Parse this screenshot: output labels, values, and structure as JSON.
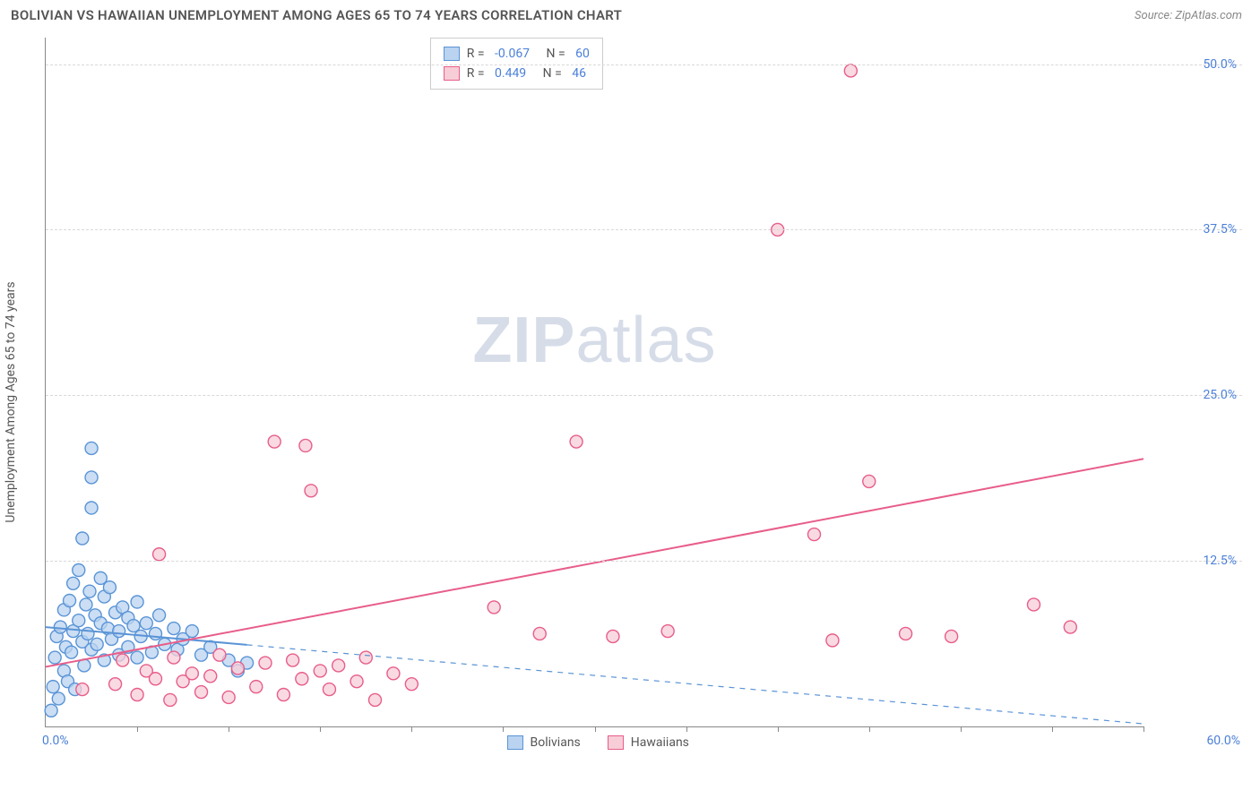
{
  "header": {
    "title": "BOLIVIAN VS HAWAIIAN UNEMPLOYMENT AMONG AGES 65 TO 74 YEARS CORRELATION CHART",
    "source_label": "Source: ZipAtlas.com"
  },
  "watermark": {
    "part1": "ZIP",
    "part2": "atlas"
  },
  "chart": {
    "type": "scatter",
    "y_axis_label": "Unemployment Among Ages 65 to 74 years",
    "xlim": [
      0,
      60
    ],
    "ylim": [
      0,
      52
    ],
    "x_ticks_minor": [
      5,
      10,
      15,
      20,
      25,
      30,
      35,
      40,
      45,
      50,
      55,
      60
    ],
    "x_origin_label": "0.0%",
    "x_max_label": "60.0%",
    "y_ticks": [
      {
        "v": 12.5,
        "label": "12.5%"
      },
      {
        "v": 25.0,
        "label": "25.0%"
      },
      {
        "v": 37.5,
        "label": "37.5%"
      },
      {
        "v": 50.0,
        "label": "50.0%"
      }
    ],
    "background_color": "#ffffff",
    "grid_color": "#d8d8d8",
    "axis_color": "#888888",
    "marker_radius": 7,
    "marker_stroke_width": 1.4,
    "line_width": 2,
    "series": [
      {
        "name": "Bolivians",
        "fill": "#b9d3f0",
        "stroke": "#5a94d6",
        "r_value": "-0.067",
        "n_value": "60",
        "trend_start": {
          "x": 0,
          "y": 7.5
        },
        "trend_end": {
          "x": 60,
          "y": 0.2
        },
        "trend_solid_until_x": 11,
        "points": [
          {
            "x": 0.3,
            "y": 1.2
          },
          {
            "x": 0.4,
            "y": 3.0
          },
          {
            "x": 0.5,
            "y": 5.2
          },
          {
            "x": 0.6,
            "y": 6.8
          },
          {
            "x": 0.7,
            "y": 2.1
          },
          {
            "x": 0.8,
            "y": 7.5
          },
          {
            "x": 1.0,
            "y": 4.2
          },
          {
            "x": 1.0,
            "y": 8.8
          },
          {
            "x": 1.1,
            "y": 6.0
          },
          {
            "x": 1.2,
            "y": 3.4
          },
          {
            "x": 1.3,
            "y": 9.5
          },
          {
            "x": 1.4,
            "y": 5.6
          },
          {
            "x": 1.5,
            "y": 7.2
          },
          {
            "x": 1.5,
            "y": 10.8
          },
          {
            "x": 1.6,
            "y": 2.8
          },
          {
            "x": 1.8,
            "y": 8.0
          },
          {
            "x": 1.8,
            "y": 11.8
          },
          {
            "x": 2.0,
            "y": 6.4
          },
          {
            "x": 2.0,
            "y": 14.2
          },
          {
            "x": 2.1,
            "y": 4.6
          },
          {
            "x": 2.2,
            "y": 9.2
          },
          {
            "x": 2.3,
            "y": 7.0
          },
          {
            "x": 2.4,
            "y": 10.2
          },
          {
            "x": 2.5,
            "y": 5.8
          },
          {
            "x": 2.5,
            "y": 16.5
          },
          {
            "x": 2.5,
            "y": 18.8
          },
          {
            "x": 2.5,
            "y": 21.0
          },
          {
            "x": 2.7,
            "y": 8.4
          },
          {
            "x": 2.8,
            "y": 6.2
          },
          {
            "x": 3.0,
            "y": 7.8
          },
          {
            "x": 3.0,
            "y": 11.2
          },
          {
            "x": 3.2,
            "y": 5.0
          },
          {
            "x": 3.2,
            "y": 9.8
          },
          {
            "x": 3.4,
            "y": 7.4
          },
          {
            "x": 3.5,
            "y": 10.5
          },
          {
            "x": 3.6,
            "y": 6.6
          },
          {
            "x": 3.8,
            "y": 8.6
          },
          {
            "x": 4.0,
            "y": 5.4
          },
          {
            "x": 4.0,
            "y": 7.2
          },
          {
            "x": 4.2,
            "y": 9.0
          },
          {
            "x": 4.5,
            "y": 6.0
          },
          {
            "x": 4.5,
            "y": 8.2
          },
          {
            "x": 4.8,
            "y": 7.6
          },
          {
            "x": 5.0,
            "y": 5.2
          },
          {
            "x": 5.0,
            "y": 9.4
          },
          {
            "x": 5.2,
            "y": 6.8
          },
          {
            "x": 5.5,
            "y": 7.8
          },
          {
            "x": 5.8,
            "y": 5.6
          },
          {
            "x": 6.0,
            "y": 7.0
          },
          {
            "x": 6.2,
            "y": 8.4
          },
          {
            "x": 6.5,
            "y": 6.2
          },
          {
            "x": 7.0,
            "y": 7.4
          },
          {
            "x": 7.2,
            "y": 5.8
          },
          {
            "x": 7.5,
            "y": 6.6
          },
          {
            "x": 8.0,
            "y": 7.2
          },
          {
            "x": 8.5,
            "y": 5.4
          },
          {
            "x": 9.0,
            "y": 6.0
          },
          {
            "x": 10.0,
            "y": 5.0
          },
          {
            "x": 10.5,
            "y": 4.2
          },
          {
            "x": 11.0,
            "y": 4.8
          }
        ]
      },
      {
        "name": "Hawaiians",
        "fill": "#f7cdd8",
        "stroke": "#e85d8a",
        "r_value": "0.449",
        "n_value": "46",
        "trend_start": {
          "x": 0,
          "y": 4.5
        },
        "trend_end": {
          "x": 60,
          "y": 20.2
        },
        "trend_solid_until_x": 60,
        "points": [
          {
            "x": 2.0,
            "y": 2.8
          },
          {
            "x": 3.8,
            "y": 3.2
          },
          {
            "x": 4.2,
            "y": 5.0
          },
          {
            "x": 5.0,
            "y": 2.4
          },
          {
            "x": 5.5,
            "y": 4.2
          },
          {
            "x": 6.0,
            "y": 3.6
          },
          {
            "x": 6.2,
            "y": 13.0
          },
          {
            "x": 6.8,
            "y": 2.0
          },
          {
            "x": 7.0,
            "y": 5.2
          },
          {
            "x": 7.5,
            "y": 3.4
          },
          {
            "x": 8.0,
            "y": 4.0
          },
          {
            "x": 8.5,
            "y": 2.6
          },
          {
            "x": 9.0,
            "y": 3.8
          },
          {
            "x": 9.5,
            "y": 5.4
          },
          {
            "x": 10.0,
            "y": 2.2
          },
          {
            "x": 10.5,
            "y": 4.4
          },
          {
            "x": 11.5,
            "y": 3.0
          },
          {
            "x": 12.0,
            "y": 4.8
          },
          {
            "x": 12.5,
            "y": 21.5
          },
          {
            "x": 13.0,
            "y": 2.4
          },
          {
            "x": 13.5,
            "y": 5.0
          },
          {
            "x": 14.0,
            "y": 3.6
          },
          {
            "x": 14.2,
            "y": 21.2
          },
          {
            "x": 14.5,
            "y": 17.8
          },
          {
            "x": 15.0,
            "y": 4.2
          },
          {
            "x": 15.5,
            "y": 2.8
          },
          {
            "x": 16.0,
            "y": 4.6
          },
          {
            "x": 17.0,
            "y": 3.4
          },
          {
            "x": 17.5,
            "y": 5.2
          },
          {
            "x": 18.0,
            "y": 2.0
          },
          {
            "x": 19.0,
            "y": 4.0
          },
          {
            "x": 20.0,
            "y": 3.2
          },
          {
            "x": 24.5,
            "y": 9.0
          },
          {
            "x": 27.0,
            "y": 7.0
          },
          {
            "x": 29.0,
            "y": 21.5
          },
          {
            "x": 31.0,
            "y": 6.8
          },
          {
            "x": 34.0,
            "y": 7.2
          },
          {
            "x": 40.0,
            "y": 37.5
          },
          {
            "x": 42.0,
            "y": 14.5
          },
          {
            "x": 43.0,
            "y": 6.5
          },
          {
            "x": 44.0,
            "y": 49.5
          },
          {
            "x": 45.0,
            "y": 18.5
          },
          {
            "x": 47.0,
            "y": 7.0
          },
          {
            "x": 49.5,
            "y": 6.8
          },
          {
            "x": 54.0,
            "y": 9.2
          },
          {
            "x": 56.0,
            "y": 7.5
          }
        ]
      }
    ],
    "legend_box": {
      "r_prefix": "R = ",
      "n_prefix": "   N = "
    },
    "bottom_legend": {
      "series1_label": "Bolivians",
      "series2_label": "Hawaiians"
    }
  }
}
